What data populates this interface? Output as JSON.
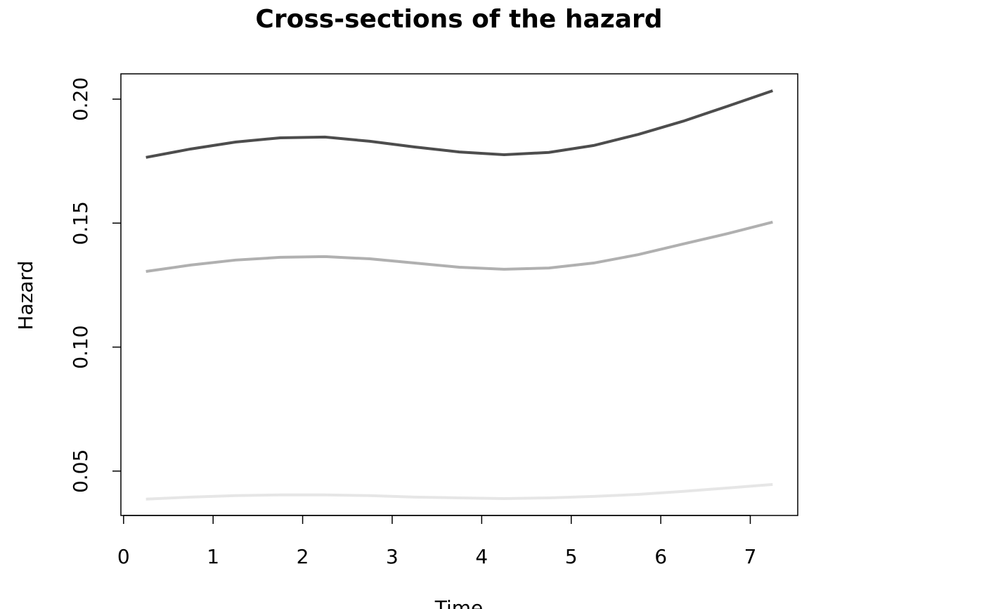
{
  "chart_data": {
    "type": "line",
    "title": "Cross-sections of the hazard",
    "xlabel": "Time",
    "ylabel": "Hazard",
    "x": [
      0.25,
      0.75,
      1.25,
      1.75,
      2.25,
      2.75,
      3.25,
      3.75,
      4.25,
      4.75,
      5.25,
      5.75,
      6.25,
      6.75,
      7.25
    ],
    "series": [
      {
        "color": "#4d4d4d",
        "values": [
          0.1765,
          0.1799,
          0.1827,
          0.1844,
          0.1847,
          0.183,
          0.1807,
          0.1787,
          0.1776,
          0.1785,
          0.1813,
          0.1858,
          0.1911,
          0.1972,
          0.2034
        ]
      },
      {
        "color": "#b0b0b0",
        "values": [
          0.1305,
          0.1331,
          0.1351,
          0.1362,
          0.1365,
          0.1356,
          0.1339,
          0.1322,
          0.1314,
          0.1319,
          0.1339,
          0.1373,
          0.1416,
          0.1458,
          0.1504
        ]
      },
      {
        "color": "#e6e6e6",
        "values": [
          0.0387,
          0.0395,
          0.0401,
          0.0404,
          0.0404,
          0.0401,
          0.0395,
          0.0392,
          0.0389,
          0.0392,
          0.0398,
          0.0406,
          0.0418,
          0.0432,
          0.0446
        ]
      }
    ],
    "xlim": [
      -0.03,
      7.53
    ],
    "ylim": [
      0.0321,
      0.2102
    ],
    "xticks": [
      0,
      1,
      2,
      3,
      4,
      5,
      6,
      7
    ],
    "yticks": [
      0.05,
      {
        "value": 0.1,
        "label": "0.10"
      },
      0.15,
      {
        "value": 0.2,
        "label": "0.20"
      }
    ]
  }
}
